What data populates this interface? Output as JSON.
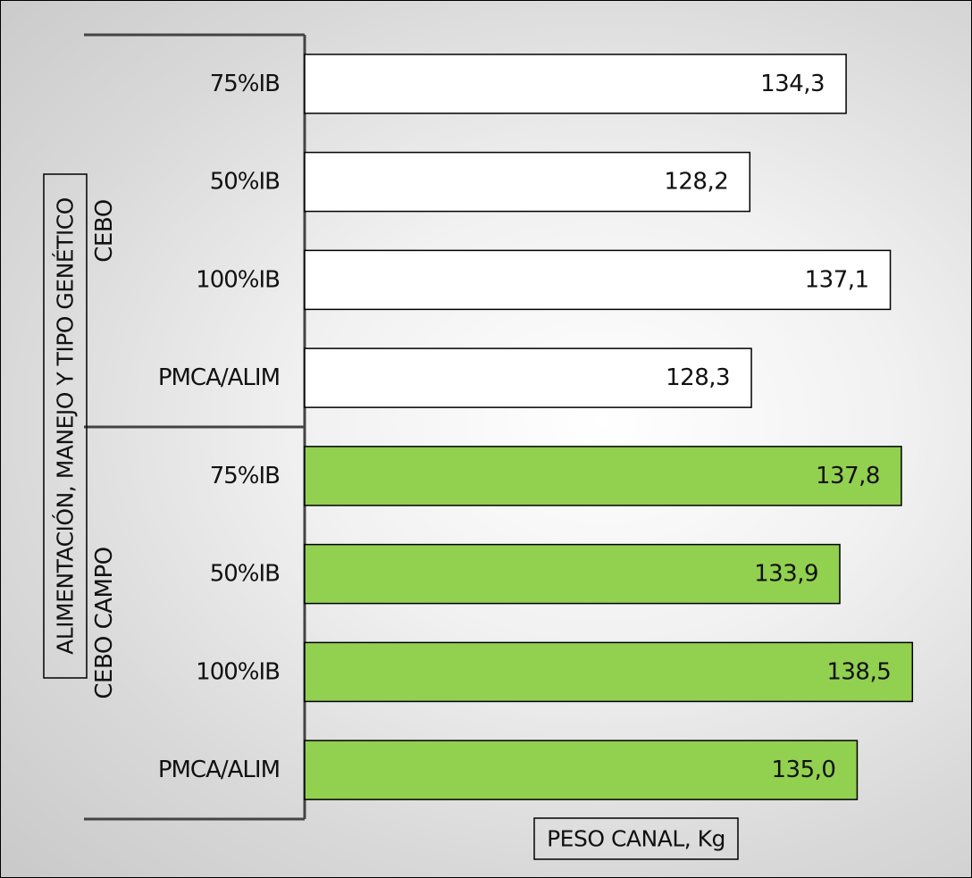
{
  "chart_data": {
    "type": "bar",
    "orientation": "horizontal",
    "ylabel": "ALIMENTACIÓN, MANEJO Y TIPO GENÉTICO",
    "xlabel": "PESO CANAL, Kg",
    "groups": [
      {
        "name": "CEBO",
        "color": "#ffffff",
        "categories": [
          "75%IB",
          "50%IB",
          "100%IB",
          "PMCA/ALIM"
        ],
        "values": [
          134.3,
          128.2,
          137.1,
          128.3
        ],
        "labels": [
          "134,3",
          "128,2",
          "137,1",
          "128,3"
        ]
      },
      {
        "name": "CEBO CAMPO",
        "color": "#92d050",
        "categories": [
          "75%IB",
          "50%IB",
          "100%IB",
          "PMCA/ALIM"
        ],
        "values": [
          137.8,
          133.9,
          138.5,
          135.0
        ],
        "labels": [
          "137,8",
          "133,9",
          "138,5",
          "135,0"
        ]
      }
    ],
    "grid": false
  }
}
